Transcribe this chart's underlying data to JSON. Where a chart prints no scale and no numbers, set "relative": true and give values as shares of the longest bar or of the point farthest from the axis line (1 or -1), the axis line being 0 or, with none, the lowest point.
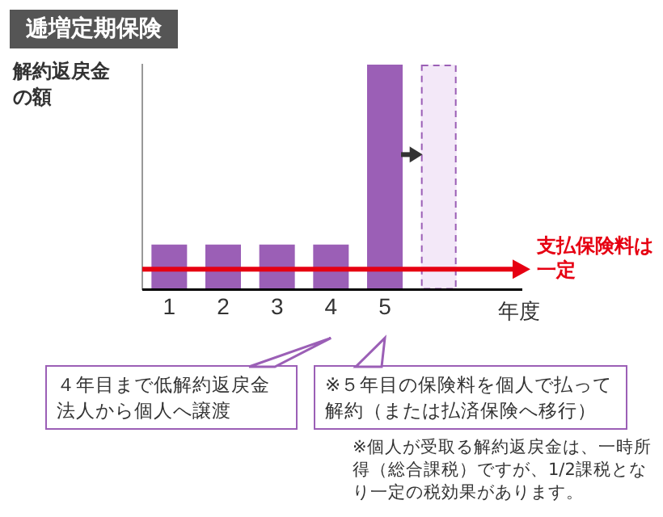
{
  "chart_data": {
    "type": "bar",
    "title": "逓増定期保険",
    "ylabel": "解約返戻金の額",
    "xlabel": "年度",
    "relative": true,
    "stacked": true,
    "legend": false,
    "grid": false,
    "categories": [
      "1",
      "2",
      "3",
      "4",
      "5",
      null
    ],
    "series": [
      {
        "color": "#9b5fb6",
        "values": [
          0.2,
          0.2,
          0.2,
          0.2,
          1,
          null
        ]
      },
      {
        "color": "#f3e8f8",
        "line_style": "dashed",
        "values": [
          null,
          null,
          null,
          null,
          null,
          1
        ]
      }
    ],
    "ref_lines": [
      {
        "axis": "y",
        "value": 0.09,
        "label": "支払保険料は一定",
        "color": "#e60012"
      }
    ],
    "annotations": [
      "４年目まで低解約返戻金法人から個人へ譲渡",
      "※５年目の保険料を個人で払って解約（または払済保険へ移行）",
      "※個人が受取る解約返戻金は、一時所得（総合課税）ですが、1/2課税となり一定の税効果があります。"
    ]
  }
}
